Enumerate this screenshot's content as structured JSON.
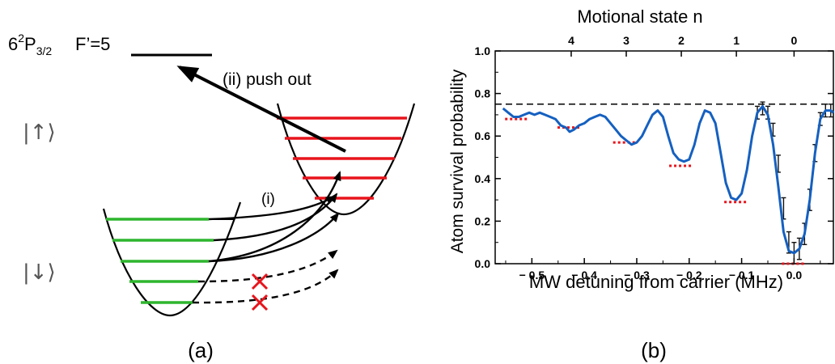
{
  "panel_a": {
    "state_label": "6",
    "state_sup": "2",
    "state_P": "P",
    "state_sub": "3/2",
    "hyperfine_label": "F’=5",
    "push_out_label": "(ii) push out",
    "transition_label": "(i)",
    "ket_up": "|↑⟩",
    "ket_down": "|↓⟩",
    "caption": "(a)",
    "colors": {
      "ground_levels": "#2db52d",
      "upper_levels": "#e8141c",
      "cross": "#e8141c"
    }
  },
  "panel_b": {
    "caption": "(b)",
    "chart_data": {
      "type": "line",
      "title": "",
      "xlabel": "MW detuning from carrier (MHz)",
      "ylabel": "Atom survival probability",
      "top_axis_label": "Motional state n",
      "xlim": [
        -0.57,
        0.075
      ],
      "ylim": [
        0.0,
        1.0
      ],
      "x_ticks": [
        {
          "value": -0.5,
          "label": "− 0.5"
        },
        {
          "value": -0.4,
          "label": "− 0.4"
        },
        {
          "value": -0.3,
          "label": "− 0.3"
        },
        {
          "value": -0.2,
          "label": "− 0.2"
        },
        {
          "value": -0.1,
          "label": "− 0.1"
        },
        {
          "value": 0.0,
          "label": "0.0"
        }
      ],
      "y_ticks": [
        {
          "value": 0.0,
          "label": "0.0"
        },
        {
          "value": 0.2,
          "label": "0.2"
        },
        {
          "value": 0.4,
          "label": "0.4"
        },
        {
          "value": 0.6,
          "label": "0.6"
        },
        {
          "value": 0.8,
          "label": "0.8"
        },
        {
          "value": 1.0,
          "label": "1.0"
        }
      ],
      "top_ticks": [
        {
          "value": -0.425,
          "label": "4"
        },
        {
          "value": -0.32,
          "label": "3"
        },
        {
          "value": -0.215,
          "label": "2"
        },
        {
          "value": -0.11,
          "label": "1"
        },
        {
          "value": 0.0,
          "label": "0"
        }
      ],
      "reference_level": 0.75,
      "series": [
        {
          "color": "#1560c0",
          "x": [
            -0.555,
            -0.545,
            -0.535,
            -0.525,
            -0.515,
            -0.505,
            -0.495,
            -0.485,
            -0.475,
            -0.465,
            -0.455,
            -0.445,
            -0.435,
            -0.428,
            -0.42,
            -0.41,
            -0.4,
            -0.39,
            -0.38,
            -0.37,
            -0.36,
            -0.35,
            -0.34,
            -0.33,
            -0.32,
            -0.31,
            -0.3,
            -0.29,
            -0.28,
            -0.27,
            -0.26,
            -0.25,
            -0.24,
            -0.23,
            -0.22,
            -0.21,
            -0.2,
            -0.19,
            -0.18,
            -0.17,
            -0.16,
            -0.15,
            -0.14,
            -0.13,
            -0.12,
            -0.11,
            -0.1,
            -0.09,
            -0.08,
            -0.07,
            -0.06,
            -0.05,
            -0.04,
            -0.03,
            -0.02,
            -0.01,
            0.0,
            0.01,
            0.02,
            0.03,
            0.04,
            0.05,
            0.06,
            0.07,
            0.075
          ],
          "y": [
            0.73,
            0.71,
            0.69,
            0.69,
            0.7,
            0.71,
            0.7,
            0.71,
            0.7,
            0.69,
            0.68,
            0.65,
            0.64,
            0.62,
            0.63,
            0.65,
            0.66,
            0.68,
            0.69,
            0.7,
            0.69,
            0.66,
            0.63,
            0.6,
            0.58,
            0.56,
            0.57,
            0.6,
            0.65,
            0.7,
            0.72,
            0.69,
            0.6,
            0.52,
            0.49,
            0.48,
            0.49,
            0.56,
            0.66,
            0.72,
            0.71,
            0.66,
            0.52,
            0.38,
            0.31,
            0.3,
            0.33,
            0.44,
            0.6,
            0.71,
            0.74,
            0.7,
            0.56,
            0.36,
            0.15,
            0.06,
            0.05,
            0.07,
            0.14,
            0.3,
            0.52,
            0.68,
            0.72,
            0.72,
            0.71
          ]
        }
      ],
      "red_markers": [
        {
          "x": -0.528,
          "y": 0.68
        },
        {
          "x": -0.428,
          "y": 0.64
        },
        {
          "x": -0.322,
          "y": 0.57
        },
        {
          "x": -0.215,
          "y": 0.46
        },
        {
          "x": -0.11,
          "y": 0.29
        },
        {
          "x": 0.0,
          "y": 0.0
        }
      ],
      "error_bars": [
        {
          "x": -0.07,
          "y": 0.71,
          "e": 0.03
        },
        {
          "x": -0.06,
          "y": 0.73,
          "e": 0.03
        },
        {
          "x": -0.05,
          "y": 0.71,
          "e": 0.03
        },
        {
          "x": -0.04,
          "y": 0.63,
          "e": 0.03
        },
        {
          "x": -0.03,
          "y": 0.47,
          "e": 0.04
        },
        {
          "x": -0.02,
          "y": 0.26,
          "e": 0.05
        },
        {
          "x": -0.01,
          "y": 0.1,
          "e": 0.05
        },
        {
          "x": 0.0,
          "y": 0.05,
          "e": 0.05
        },
        {
          "x": 0.01,
          "y": 0.07,
          "e": 0.05
        },
        {
          "x": 0.02,
          "y": 0.14,
          "e": 0.05
        },
        {
          "x": 0.03,
          "y": 0.3,
          "e": 0.05
        },
        {
          "x": 0.04,
          "y": 0.52,
          "e": 0.04
        },
        {
          "x": 0.05,
          "y": 0.68,
          "e": 0.03
        },
        {
          "x": 0.06,
          "y": 0.72,
          "e": 0.03
        },
        {
          "x": 0.07,
          "y": 0.72,
          "e": 0.03
        }
      ],
      "colors": {
        "curve": "#1560c0",
        "markers": "#e8141c",
        "reference_line": "#000000"
      }
    }
  }
}
